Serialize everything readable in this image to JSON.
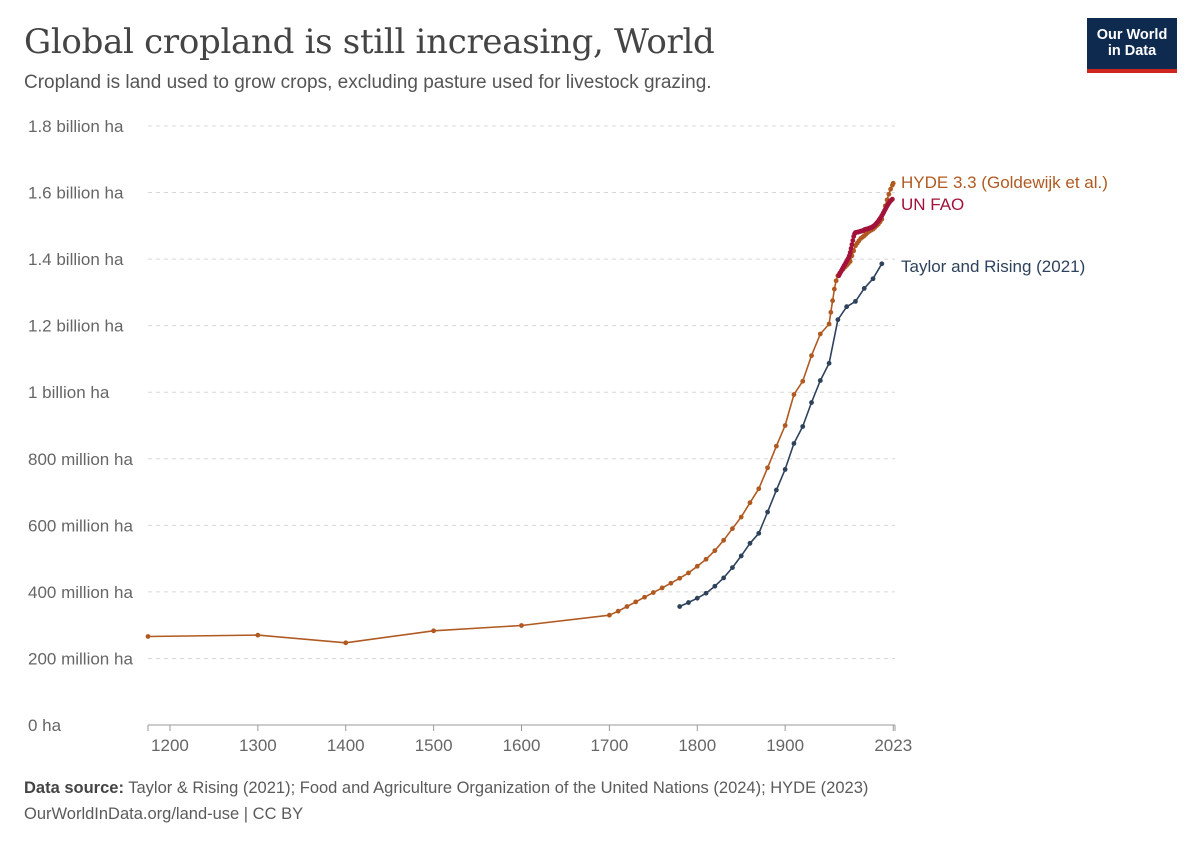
{
  "header": {
    "title": "Global cropland is still increasing, World",
    "subtitle": "Cropland is land used to grow crops, excluding pasture used for livestock grazing."
  },
  "logo": {
    "line1": "Our World",
    "line2": "in Data"
  },
  "footer": {
    "source_label": "Data source:",
    "source_text": "Taylor & Rising (2021); Food and Agriculture Organization of the United Nations (2024); HYDE (2023)",
    "url_text": "OurWorldInData.org/land-use | CC BY"
  },
  "chart_data": {
    "type": "line",
    "x_unit": "year",
    "xlim": [
      1175,
      2025
    ],
    "ylim": [
      0,
      1800000000
    ],
    "y_ticks": [
      {
        "value": 0,
        "label": "0 ha"
      },
      {
        "value": 200000000,
        "label": "200 million ha"
      },
      {
        "value": 400000000,
        "label": "400 million ha"
      },
      {
        "value": 600000000,
        "label": "600 million ha"
      },
      {
        "value": 800000000,
        "label": "800 million ha"
      },
      {
        "value": 1000000000,
        "label": "1 billion ha"
      },
      {
        "value": 1200000000,
        "label": "1.2 billion ha"
      },
      {
        "value": 1400000000,
        "label": "1.4 billion ha"
      },
      {
        "value": 1600000000,
        "label": "1.6 billion ha"
      },
      {
        "value": 1800000000,
        "label": "1.8 billion ha"
      }
    ],
    "x_ticks": [
      {
        "value": 1200,
        "label": "1200"
      },
      {
        "value": 1300,
        "label": "1300"
      },
      {
        "value": 1400,
        "label": "1400"
      },
      {
        "value": 1500,
        "label": "1500"
      },
      {
        "value": 1600,
        "label": "1600"
      },
      {
        "value": 1700,
        "label": "1700"
      },
      {
        "value": 1800,
        "label": "1800"
      },
      {
        "value": 1900,
        "label": "1900"
      },
      {
        "value": 2023,
        "label": "2023"
      }
    ],
    "grid": true,
    "legend": "right-end labels",
    "series": [
      {
        "name": "HYDE 3.3 (Goldewijk et al.)",
        "color": "#b05a22",
        "points": [
          [
            1175,
            266000000
          ],
          [
            1300,
            270000000
          ],
          [
            1400,
            247000000
          ],
          [
            1500,
            283000000
          ],
          [
            1600,
            299000000
          ],
          [
            1700,
            330000000
          ],
          [
            1710,
            342000000
          ],
          [
            1720,
            356000000
          ],
          [
            1730,
            370000000
          ],
          [
            1740,
            384000000
          ],
          [
            1750,
            398000000
          ],
          [
            1760,
            412000000
          ],
          [
            1770,
            426000000
          ],
          [
            1780,
            441000000
          ],
          [
            1790,
            457000000
          ],
          [
            1800,
            477000000
          ],
          [
            1810,
            498000000
          ],
          [
            1820,
            524000000
          ],
          [
            1830,
            555000000
          ],
          [
            1840,
            590000000
          ],
          [
            1850,
            625000000
          ],
          [
            1860,
            668000000
          ],
          [
            1870,
            710000000
          ],
          [
            1880,
            773000000
          ],
          [
            1890,
            838000000
          ],
          [
            1900,
            900000000
          ],
          [
            1910,
            993000000
          ],
          [
            1920,
            1033000000
          ],
          [
            1930,
            1110000000
          ],
          [
            1940,
            1175000000
          ],
          [
            1950,
            1205000000
          ],
          [
            1952,
            1240000000
          ],
          [
            1954,
            1275000000
          ],
          [
            1956,
            1310000000
          ],
          [
            1958,
            1335000000
          ],
          [
            1960,
            1350000000
          ],
          [
            1962,
            1358000000
          ],
          [
            1964,
            1364000000
          ],
          [
            1966,
            1370000000
          ],
          [
            1968,
            1376000000
          ],
          [
            1970,
            1381000000
          ],
          [
            1972,
            1387000000
          ],
          [
            1974,
            1393000000
          ],
          [
            1976,
            1410000000
          ],
          [
            1978,
            1425000000
          ],
          [
            1980,
            1440000000
          ],
          [
            1982,
            1448000000
          ],
          [
            1984,
            1455000000
          ],
          [
            1986,
            1462000000
          ],
          [
            1988,
            1466000000
          ],
          [
            1990,
            1470000000
          ],
          [
            1992,
            1475000000
          ],
          [
            1994,
            1480000000
          ],
          [
            1996,
            1484000000
          ],
          [
            1998,
            1487000000
          ],
          [
            2000,
            1490000000
          ],
          [
            2002,
            1495000000
          ],
          [
            2004,
            1500000000
          ],
          [
            2006,
            1505000000
          ],
          [
            2008,
            1512000000
          ],
          [
            2010,
            1520000000
          ],
          [
            2012,
            1540000000
          ],
          [
            2014,
            1560000000
          ],
          [
            2016,
            1578000000
          ],
          [
            2018,
            1595000000
          ],
          [
            2020,
            1610000000
          ],
          [
            2022,
            1622000000
          ],
          [
            2023,
            1628000000
          ]
        ]
      },
      {
        "name": "UN FAO",
        "color": "#a2123a",
        "points": [
          [
            1961,
            1350000000
          ],
          [
            1962,
            1355000000
          ],
          [
            1963,
            1360000000
          ],
          [
            1964,
            1365000000
          ],
          [
            1965,
            1370000000
          ],
          [
            1966,
            1375000000
          ],
          [
            1967,
            1380000000
          ],
          [
            1968,
            1384000000
          ],
          [
            1969,
            1389000000
          ],
          [
            1970,
            1394000000
          ],
          [
            1971,
            1398000000
          ],
          [
            1972,
            1403000000
          ],
          [
            1973,
            1410000000
          ],
          [
            1974,
            1420000000
          ],
          [
            1975,
            1432000000
          ],
          [
            1976,
            1444000000
          ],
          [
            1977,
            1456000000
          ],
          [
            1978,
            1468000000
          ],
          [
            1979,
            1476000000
          ],
          [
            1980,
            1480000000
          ],
          [
            1981,
            1480000000
          ],
          [
            1982,
            1481000000
          ],
          [
            1983,
            1481000000
          ],
          [
            1984,
            1482000000
          ],
          [
            1985,
            1483000000
          ],
          [
            1986,
            1484000000
          ],
          [
            1987,
            1484000000
          ],
          [
            1988,
            1485000000
          ],
          [
            1989,
            1486000000
          ],
          [
            1990,
            1488000000
          ],
          [
            1991,
            1489000000
          ],
          [
            1992,
            1490000000
          ],
          [
            1993,
            1490000000
          ],
          [
            1994,
            1491000000
          ],
          [
            1995,
            1492000000
          ],
          [
            1996,
            1493000000
          ],
          [
            1997,
            1494000000
          ],
          [
            1998,
            1495000000
          ],
          [
            1999,
            1496000000
          ],
          [
            2000,
            1498000000
          ],
          [
            2001,
            1500000000
          ],
          [
            2002,
            1502000000
          ],
          [
            2003,
            1505000000
          ],
          [
            2004,
            1508000000
          ],
          [
            2005,
            1511000000
          ],
          [
            2006,
            1514000000
          ],
          [
            2007,
            1518000000
          ],
          [
            2008,
            1522000000
          ],
          [
            2009,
            1526000000
          ],
          [
            2010,
            1530000000
          ],
          [
            2011,
            1535000000
          ],
          [
            2012,
            1540000000
          ],
          [
            2013,
            1545000000
          ],
          [
            2014,
            1550000000
          ],
          [
            2015,
            1555000000
          ],
          [
            2016,
            1560000000
          ],
          [
            2017,
            1564000000
          ],
          [
            2018,
            1568000000
          ],
          [
            2019,
            1572000000
          ],
          [
            2020,
            1575000000
          ],
          [
            2021,
            1578000000
          ],
          [
            2022,
            1580000000
          ]
        ]
      },
      {
        "name": "Taylor and Rising (2021)",
        "color": "#2f425c",
        "points": [
          [
            1780,
            356000000
          ],
          [
            1790,
            368000000
          ],
          [
            1800,
            381000000
          ],
          [
            1810,
            396000000
          ],
          [
            1820,
            417000000
          ],
          [
            1830,
            442000000
          ],
          [
            1840,
            473000000
          ],
          [
            1850,
            508000000
          ],
          [
            1860,
            546000000
          ],
          [
            1870,
            576000000
          ],
          [
            1880,
            640000000
          ],
          [
            1890,
            706000000
          ],
          [
            1900,
            768000000
          ],
          [
            1910,
            846000000
          ],
          [
            1920,
            897000000
          ],
          [
            1930,
            969000000
          ],
          [
            1940,
            1035000000
          ],
          [
            1950,
            1087000000
          ],
          [
            1960,
            1218000000
          ],
          [
            1970,
            1257000000
          ],
          [
            1980,
            1273000000
          ],
          [
            1990,
            1312000000
          ],
          [
            2000,
            1341000000
          ],
          [
            2010,
            1386000000
          ]
        ]
      }
    ]
  }
}
